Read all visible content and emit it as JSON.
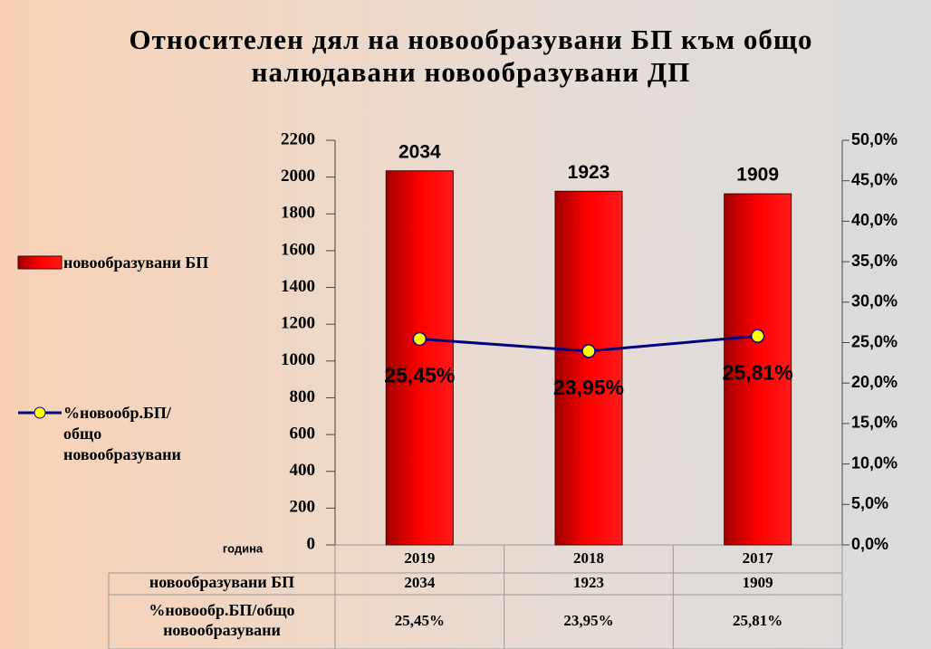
{
  "chart_data": {
    "type": "bar",
    "title": "Относителен дял на новообразувани  БП към общо налюдавани новообразувани ДП",
    "x_label": "година",
    "categories": [
      "2019",
      "2018",
      "2017"
    ],
    "series": [
      {
        "name": "новообразувани БП",
        "type": "bar",
        "color": "#ff0000",
        "values": [
          2034,
          1923,
          1909
        ]
      },
      {
        "name": "%новообр.БП/общо новообразувани",
        "type": "line",
        "axis": "y2",
        "color": "#000080",
        "marker_color": "#ffff00",
        "values": [
          25.45,
          23.95,
          25.81
        ],
        "value_labels": [
          "25,45%",
          "23,95%",
          "25,81%"
        ]
      }
    ],
    "ylim": [
      0,
      2200
    ],
    "yticks": [
      0,
      200,
      400,
      600,
      800,
      1000,
      1200,
      1400,
      1600,
      1800,
      2000,
      2200
    ],
    "y2lim": [
      0,
      50
    ],
    "y2ticks": [
      {
        "value": 0,
        "label": "0,0%"
      },
      {
        "value": 5,
        "label": "5,0%"
      },
      {
        "value": 10,
        "label": "10,0%"
      },
      {
        "value": 15,
        "label": "15,0%"
      },
      {
        "value": 20,
        "label": "20,0%"
      },
      {
        "value": 25,
        "label": "25,0%"
      },
      {
        "value": 30,
        "label": "30,0%"
      },
      {
        "value": 35,
        "label": "35,0%"
      },
      {
        "value": 40,
        "label": "40,0%"
      },
      {
        "value": 45,
        "label": "45,0%"
      },
      {
        "value": 50,
        "label": "50,0%"
      }
    ],
    "legend": "left",
    "data_table": true
  }
}
